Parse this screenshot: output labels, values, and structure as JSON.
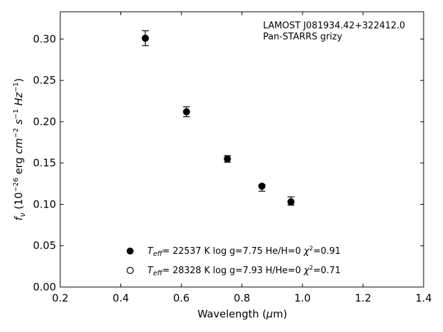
{
  "chart_data": {
    "type": "scatter",
    "xlabel": "Wavelength (μm)",
    "ylabel": "f_ν (10^−26 erg cm^−2 s^−1 Hz^−1)",
    "xlim": [
      0.2,
      1.4
    ],
    "ylim": [
      0.0,
      0.333
    ],
    "xticks": [
      0.2,
      0.4,
      0.6,
      0.8,
      1.0,
      1.2,
      1.4
    ],
    "xtick_labels": [
      "0.2",
      "0.4",
      "0.6",
      "0.8",
      "1.0",
      "1.2",
      "1.4"
    ],
    "yticks": [
      0.0,
      0.05,
      0.1,
      0.15,
      0.2,
      0.25,
      0.3
    ],
    "ytick_labels": [
      "0.00",
      "0.05",
      "0.10",
      "0.15",
      "0.20",
      "0.25",
      "0.30"
    ],
    "grid": false,
    "annotation": [
      "LAMOST J081934.42+322412.0",
      "Pan-STARRS grizy"
    ],
    "series": [
      {
        "marker": "filled-circle",
        "label": "T_eff= 22537 K  log g=7.75  He/H=0  χ²=0.91",
        "x": [
          0.481,
          0.617,
          0.752,
          0.866,
          0.962
        ],
        "y": [
          0.301,
          0.212,
          0.155,
          0.122,
          0.103
        ]
      },
      {
        "marker": "open-circle",
        "label": "T_eff= 28328 K  log g=7.93  H/He=0  χ²=0.71",
        "x": [
          0.481,
          0.617,
          0.752,
          0.866,
          0.962
        ],
        "y": [
          0.301,
          0.212,
          0.155,
          0.122,
          0.103
        ]
      }
    ],
    "observed": {
      "x": [
        0.481,
        0.617,
        0.752,
        0.866,
        0.962
      ],
      "y": [
        0.301,
        0.212,
        0.155,
        0.12,
        0.104
      ],
      "yerr": [
        0.009,
        0.006,
        0.004,
        0.004,
        0.005
      ]
    },
    "legend_position": "lower-center"
  },
  "colors": {
    "ink": "#000000",
    "background": "#ffffff"
  }
}
